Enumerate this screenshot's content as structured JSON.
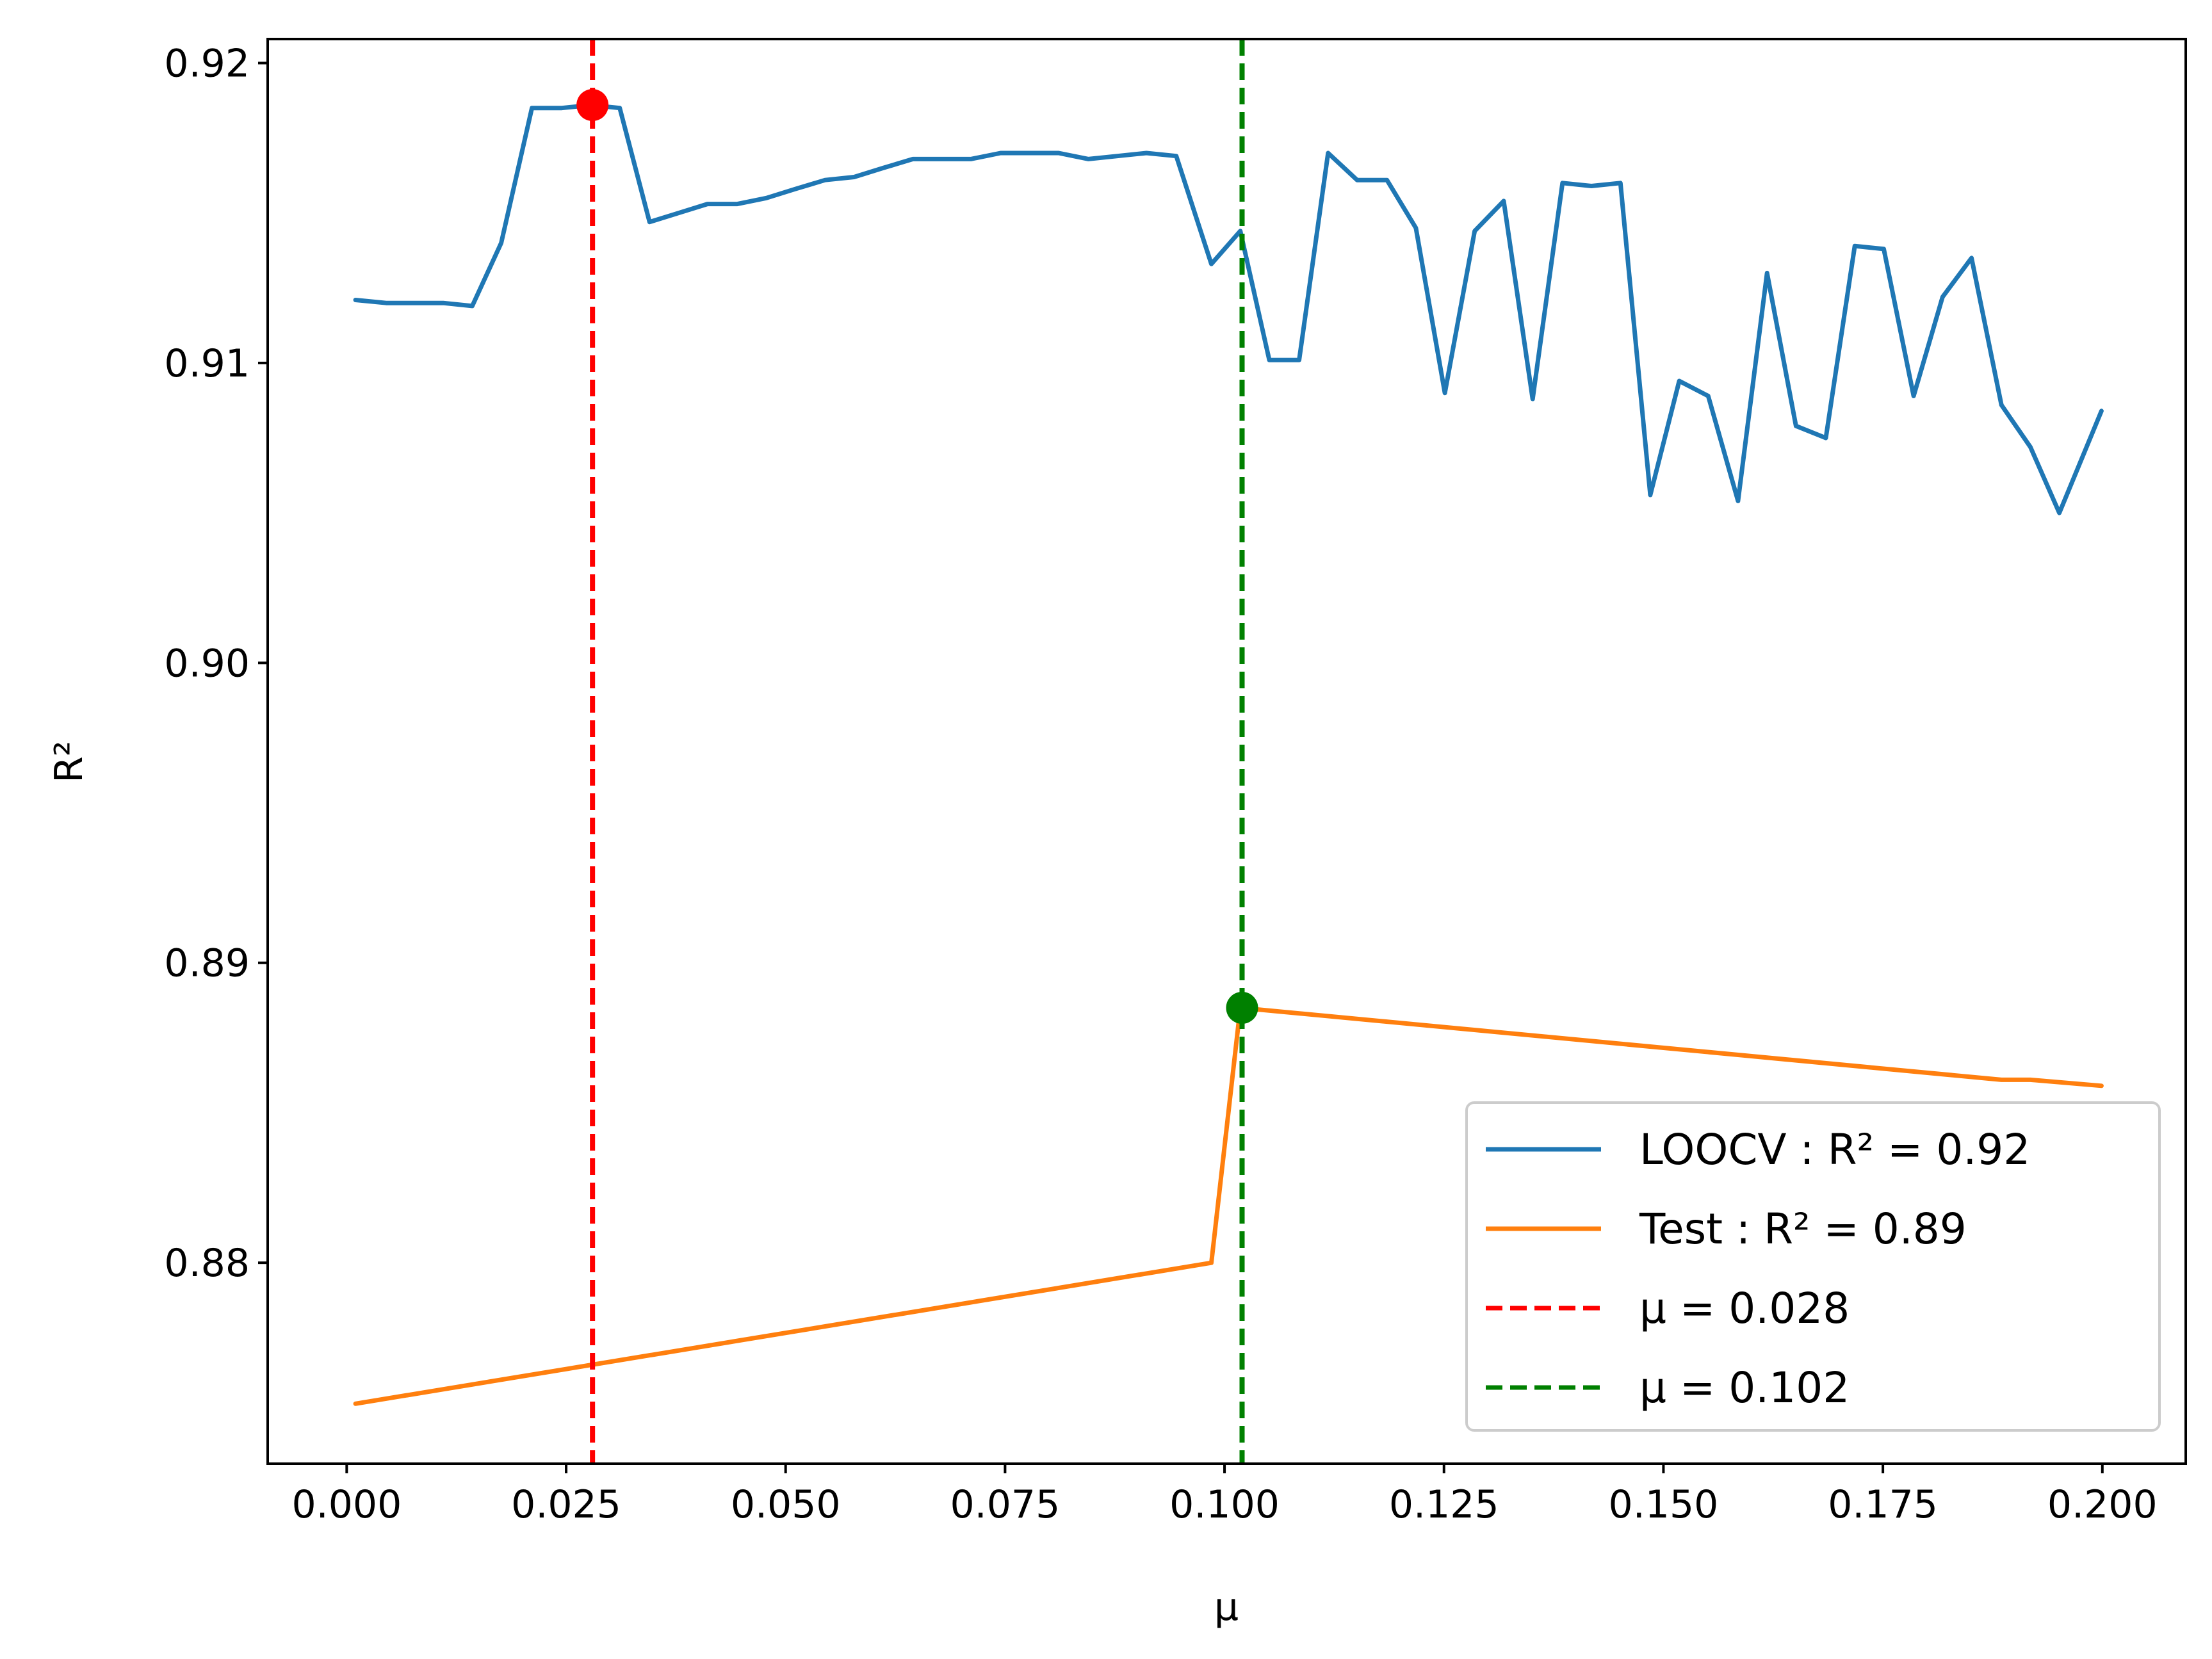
{
  "chart_data": {
    "type": "line",
    "title": "",
    "xlabel": "μ",
    "ylabel": "R²",
    "xlim": [
      -0.009,
      0.2095
    ],
    "ylim": [
      0.8733,
      0.9208
    ],
    "xticks": [
      0.0,
      0.025,
      0.05,
      0.075,
      0.1,
      0.125,
      0.15,
      0.175,
      0.2
    ],
    "xtick_labels": [
      "0.000",
      "0.025",
      "0.050",
      "0.075",
      "0.100",
      "0.125",
      "0.150",
      "0.175",
      "0.200"
    ],
    "yticks": [
      0.88,
      0.89,
      0.9,
      0.91,
      0.92
    ],
    "ytick_labels": [
      "0.88",
      "0.89",
      "0.90",
      "0.91",
      "0.92"
    ],
    "grid": false,
    "legend_position": "lower-right",
    "series": [
      {
        "name": "LOOCV : R² = 0.92",
        "color": "#1f77b4",
        "style": "solid",
        "x": [
          0.001,
          0.0045,
          0.0078,
          0.011,
          0.0143,
          0.0176,
          0.0211,
          0.0245,
          0.0278,
          0.0311,
          0.0345,
          0.0378,
          0.0411,
          0.0445,
          0.0478,
          0.0511,
          0.0545,
          0.0578,
          0.0611,
          0.0645,
          0.0678,
          0.0711,
          0.0745,
          0.0778,
          0.0811,
          0.0845,
          0.0878,
          0.0911,
          0.0945,
          0.0985,
          0.1018,
          0.1051,
          0.1085,
          0.1118,
          0.1151,
          0.1185,
          0.1218,
          0.1251,
          0.1285,
          0.1318,
          0.1351,
          0.1385,
          0.1418,
          0.1451,
          0.1485,
          0.1518,
          0.1551,
          0.1585,
          0.1618,
          0.1651,
          0.1685,
          0.1718,
          0.1751,
          0.1785,
          0.1818,
          0.1851,
          0.1885,
          0.1918,
          0.1951,
          0.1999
        ],
        "y": [
          0.9121,
          0.912,
          0.912,
          0.912,
          0.9119,
          0.914,
          0.9185,
          0.9185,
          0.9186,
          0.9185,
          0.9147,
          0.915,
          0.9153,
          0.9153,
          0.9155,
          0.9158,
          0.9161,
          0.9162,
          0.9165,
          0.9168,
          0.9168,
          0.9168,
          0.917,
          0.917,
          0.917,
          0.9168,
          0.9169,
          0.917,
          0.9169,
          0.9133,
          0.9144,
          0.9101,
          0.9101,
          0.917,
          0.9161,
          0.9161,
          0.9145,
          0.909,
          0.9144,
          0.9154,
          0.9088,
          0.916,
          0.9159,
          0.916,
          0.9056,
          0.9094,
          0.9089,
          0.9054,
          0.913,
          0.9079,
          0.9075,
          0.9139,
          0.9138,
          0.9089,
          0.9122,
          0.9135,
          0.9086,
          0.9072,
          0.905,
          0.9084
        ]
      },
      {
        "name": "Test : R² = 0.89",
        "color": "#ff7f0e",
        "style": "solid",
        "x": [
          0.001,
          0.0985,
          0.1018,
          0.1885,
          0.1918,
          0.1999
        ],
        "y": [
          0.8753,
          0.88,
          0.8885,
          0.8861,
          0.8861,
          0.8859
        ]
      }
    ],
    "vlines": [
      {
        "name": "μ = 0.028",
        "x": 0.028,
        "color": "#ff0000",
        "style": "dashed"
      },
      {
        "name": "μ = 0.102",
        "x": 0.102,
        "color": "#008000",
        "style": "dashed"
      }
    ],
    "markers": [
      {
        "x": 0.028,
        "y": 0.9186,
        "color": "#ff0000"
      },
      {
        "x": 0.102,
        "y": 0.8885,
        "color": "#008000"
      }
    ]
  }
}
